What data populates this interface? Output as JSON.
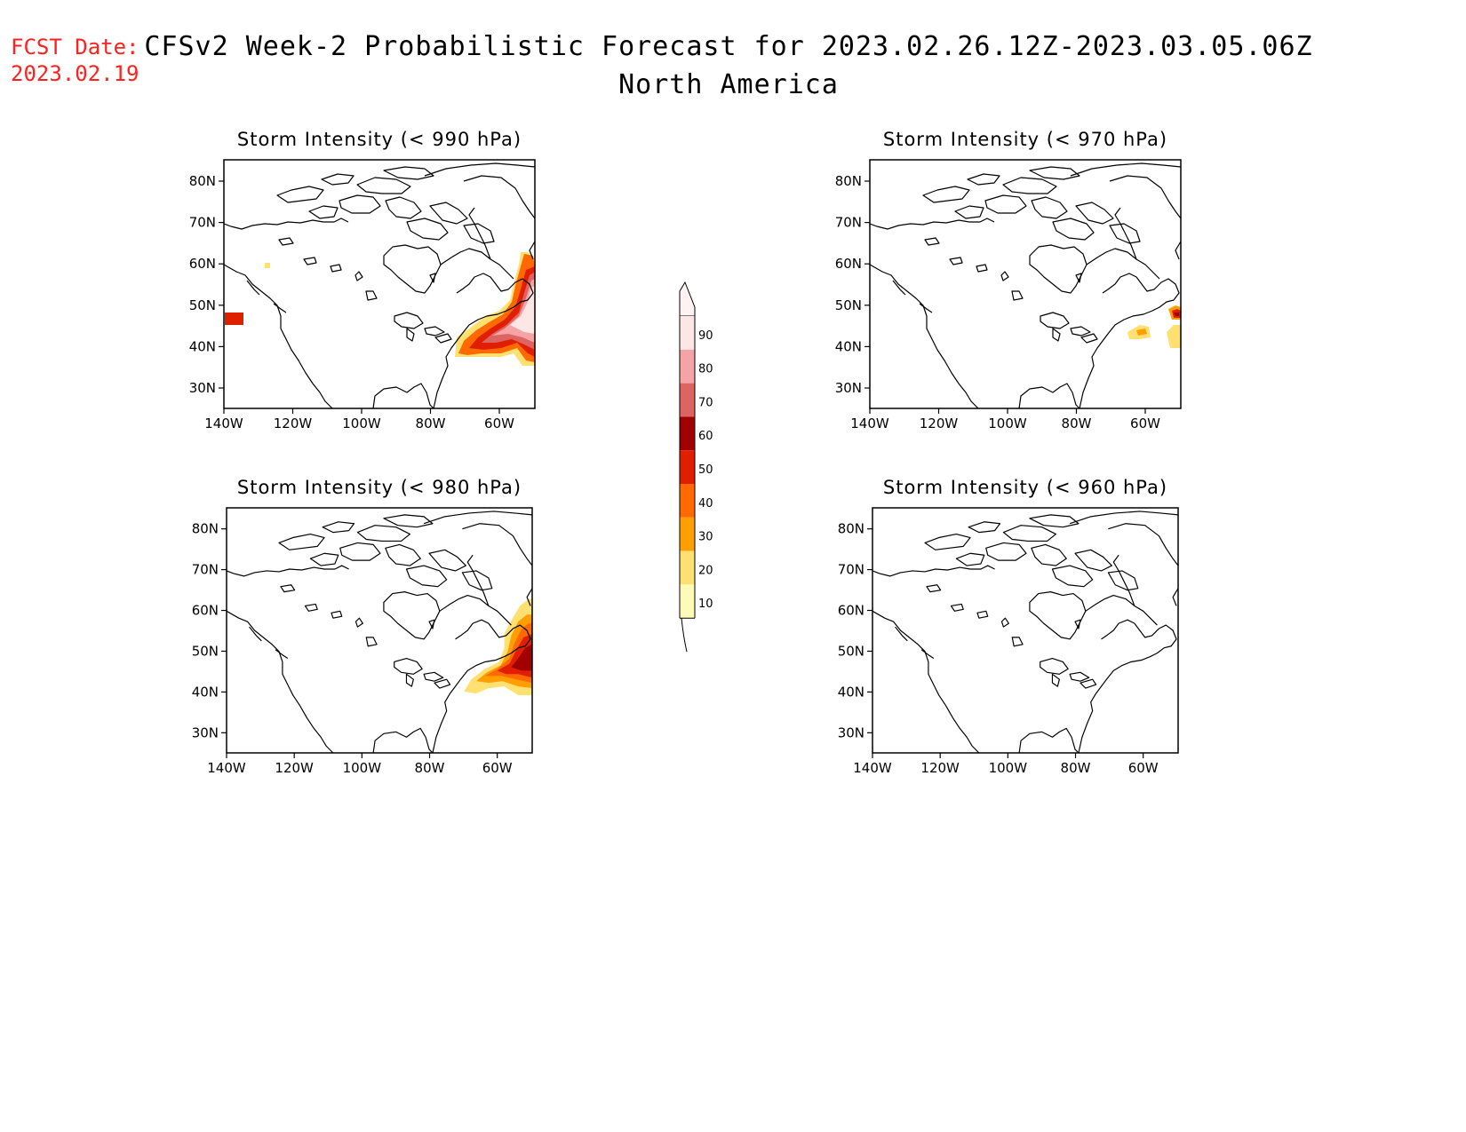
{
  "header": {
    "fcst_label": "FCST Date:",
    "fcst_date": "2023.02.19",
    "title": "CFSv2 Week-2 Probabilistic Forecast for 2023.02.26.12Z-2023.03.05.06Z",
    "subtitle": "North America"
  },
  "panels": [
    {
      "id": "p990",
      "title": "Storm Intensity (< 990 hPa)"
    },
    {
      "id": "p970",
      "title": "Storm Intensity (< 970 hPa)"
    },
    {
      "id": "p980",
      "title": "Storm Intensity (< 980 hPa)"
    },
    {
      "id": "p960",
      "title": "Storm Intensity (< 960 hPa)"
    }
  ],
  "axes": {
    "lat_labels": [
      "80N",
      "70N",
      "60N",
      "50N",
      "40N",
      "30N"
    ],
    "lon_labels": [
      "140W",
      "120W",
      "100W",
      "80W",
      "60W"
    ]
  },
  "colorbar": {
    "labels": [
      "90",
      "80",
      "70",
      "60",
      "50",
      "40",
      "30",
      "20",
      "10"
    ],
    "colors": [
      "#fde6e6",
      "#f4a4a4",
      "#de6464",
      "#a00000",
      "#e01e00",
      "#ff6a00",
      "#ff9e00",
      "#ffe070",
      "#fffab8"
    ]
  }
}
